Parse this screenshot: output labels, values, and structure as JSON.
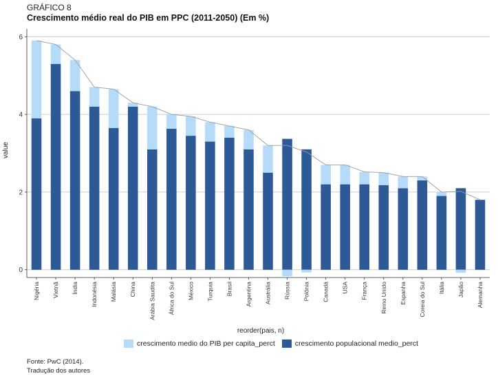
{
  "header": {
    "pre_title": "GRÁFICO 8",
    "title": "Crescimento médio real do PIB em PPC (2011-2050) (Em %)"
  },
  "footer": {
    "source": "Fonte: PwC (2014).",
    "translation": "Tradução dos autores"
  },
  "colors": {
    "per_capita": "#b6dbf9",
    "populacional": "#2d5a96",
    "grid": "#bdbdbd",
    "total_line": "#9a9a9a"
  },
  "chart_data": {
    "type": "bar",
    "stacked": true,
    "xlabel": "reorder(pais, n)",
    "ylabel": "value",
    "ylim": [
      -0.2,
      6.2
    ],
    "yticks": [
      0,
      2,
      4,
      6
    ],
    "grid": true,
    "legend_position": "bottom",
    "categories": [
      "Nigéria",
      "Vietnã",
      "Índia",
      "Indonésia",
      "Malásia",
      "China",
      "Arábia Saudita",
      "África do Sul",
      "México",
      "Turquia",
      "Brasil",
      "Argentina",
      "Austrália",
      "Rússia",
      "Polônia",
      "Canadá",
      "USA",
      "França",
      "Reino Unido",
      "Espanha",
      "Coreia do Sul",
      "Itália",
      "Japão",
      "Alemanha"
    ],
    "series": [
      {
        "name": "crescimento populacional medio_perct",
        "values": [
          3.9,
          5.3,
          4.6,
          4.2,
          3.65,
          4.2,
          3.1,
          3.63,
          3.45,
          3.3,
          3.4,
          3.1,
          2.5,
          3.37,
          3.1,
          2.2,
          2.2,
          2.2,
          2.18,
          2.1,
          2.3,
          1.9,
          2.1,
          1.8
        ]
      },
      {
        "name": "crescimento medio do PIB per capita_perct",
        "values": [
          2.0,
          0.5,
          0.8,
          0.5,
          1.0,
          0.1,
          1.1,
          0.37,
          0.5,
          0.5,
          0.3,
          0.5,
          0.7,
          -0.17,
          -0.07,
          0.5,
          0.5,
          0.32,
          0.32,
          0.3,
          0.1,
          0.1,
          -0.08,
          0.0
        ]
      }
    ],
    "total_line": [
      5.9,
      5.8,
      5.4,
      4.7,
      4.65,
      4.3,
      4.2,
      4.0,
      3.95,
      3.8,
      3.7,
      3.6,
      3.2,
      3.2,
      3.03,
      2.7,
      2.7,
      2.52,
      2.5,
      2.4,
      2.4,
      2.0,
      2.02,
      1.8
    ]
  }
}
